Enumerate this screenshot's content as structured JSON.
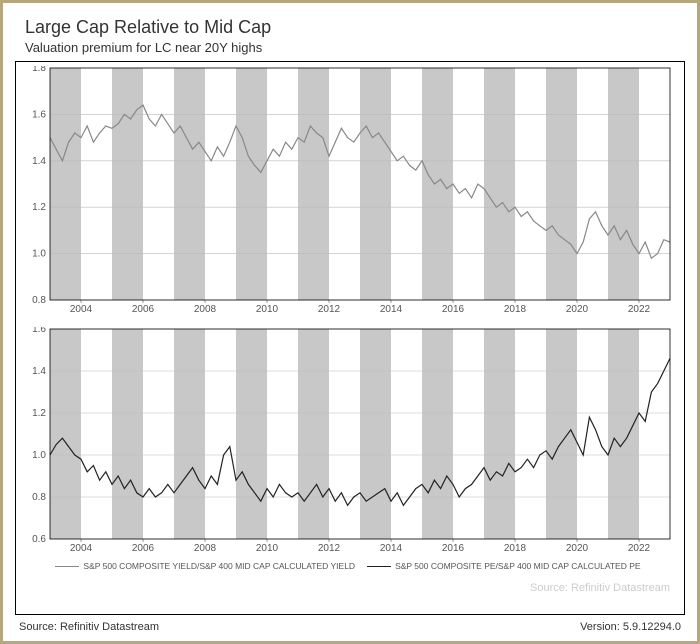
{
  "title": "Large Cap Relative to Mid Cap",
  "subtitle": "Valuation premium for LC near 20Y highs",
  "source_left": "Source: Refinitiv Datastream",
  "source_right": "Version: 5.9.12294.0",
  "watermark": "Source: Refinitiv Datastream",
  "x_axis": {
    "min": 2003,
    "max": 2023,
    "ticks": [
      2004,
      2006,
      2008,
      2010,
      2012,
      2014,
      2016,
      2018,
      2020,
      2022
    ]
  },
  "bands": [
    [
      2003,
      2004
    ],
    [
      2005,
      2006
    ],
    [
      2007,
      2008
    ],
    [
      2009,
      2010
    ],
    [
      2011,
      2012
    ],
    [
      2013,
      2014
    ],
    [
      2015,
      2016
    ],
    [
      2017,
      2018
    ],
    [
      2019,
      2020
    ],
    [
      2021,
      2022
    ]
  ],
  "panel_top": {
    "ylim": [
      0.8,
      1.8
    ],
    "yticks": [
      0.8,
      1.0,
      1.2,
      1.4,
      1.6,
      1.8
    ],
    "line_color": "#888888",
    "grid_color": "#bbbbbb",
    "band_color": "#c8c8c8",
    "series": [
      [
        2003.0,
        1.5
      ],
      [
        2003.2,
        1.45
      ],
      [
        2003.4,
        1.4
      ],
      [
        2003.6,
        1.48
      ],
      [
        2003.8,
        1.52
      ],
      [
        2004.0,
        1.5
      ],
      [
        2004.2,
        1.55
      ],
      [
        2004.4,
        1.48
      ],
      [
        2004.6,
        1.52
      ],
      [
        2004.8,
        1.55
      ],
      [
        2005.0,
        1.54
      ],
      [
        2005.2,
        1.56
      ],
      [
        2005.4,
        1.6
      ],
      [
        2005.6,
        1.58
      ],
      [
        2005.8,
        1.62
      ],
      [
        2006.0,
        1.64
      ],
      [
        2006.2,
        1.58
      ],
      [
        2006.4,
        1.55
      ],
      [
        2006.6,
        1.6
      ],
      [
        2006.8,
        1.56
      ],
      [
        2007.0,
        1.52
      ],
      [
        2007.2,
        1.55
      ],
      [
        2007.4,
        1.5
      ],
      [
        2007.6,
        1.45
      ],
      [
        2007.8,
        1.48
      ],
      [
        2008.0,
        1.44
      ],
      [
        2008.2,
        1.4
      ],
      [
        2008.4,
        1.46
      ],
      [
        2008.6,
        1.42
      ],
      [
        2008.8,
        1.48
      ],
      [
        2009.0,
        1.55
      ],
      [
        2009.2,
        1.5
      ],
      [
        2009.4,
        1.42
      ],
      [
        2009.6,
        1.38
      ],
      [
        2009.8,
        1.35
      ],
      [
        2010.0,
        1.4
      ],
      [
        2010.2,
        1.45
      ],
      [
        2010.4,
        1.42
      ],
      [
        2010.6,
        1.48
      ],
      [
        2010.8,
        1.45
      ],
      [
        2011.0,
        1.5
      ],
      [
        2011.2,
        1.48
      ],
      [
        2011.4,
        1.55
      ],
      [
        2011.6,
        1.52
      ],
      [
        2011.8,
        1.5
      ],
      [
        2012.0,
        1.42
      ],
      [
        2012.2,
        1.48
      ],
      [
        2012.4,
        1.54
      ],
      [
        2012.6,
        1.5
      ],
      [
        2012.8,
        1.48
      ],
      [
        2013.0,
        1.52
      ],
      [
        2013.2,
        1.55
      ],
      [
        2013.4,
        1.5
      ],
      [
        2013.6,
        1.52
      ],
      [
        2013.8,
        1.48
      ],
      [
        2014.0,
        1.44
      ],
      [
        2014.2,
        1.4
      ],
      [
        2014.4,
        1.42
      ],
      [
        2014.6,
        1.38
      ],
      [
        2014.8,
        1.36
      ],
      [
        2015.0,
        1.4
      ],
      [
        2015.2,
        1.34
      ],
      [
        2015.4,
        1.3
      ],
      [
        2015.6,
        1.32
      ],
      [
        2015.8,
        1.28
      ],
      [
        2016.0,
        1.3
      ],
      [
        2016.2,
        1.26
      ],
      [
        2016.4,
        1.28
      ],
      [
        2016.6,
        1.24
      ],
      [
        2016.8,
        1.3
      ],
      [
        2017.0,
        1.28
      ],
      [
        2017.2,
        1.24
      ],
      [
        2017.4,
        1.2
      ],
      [
        2017.6,
        1.22
      ],
      [
        2017.8,
        1.18
      ],
      [
        2018.0,
        1.2
      ],
      [
        2018.2,
        1.16
      ],
      [
        2018.4,
        1.18
      ],
      [
        2018.6,
        1.14
      ],
      [
        2018.8,
        1.12
      ],
      [
        2019.0,
        1.1
      ],
      [
        2019.2,
        1.12
      ],
      [
        2019.4,
        1.08
      ],
      [
        2019.6,
        1.06
      ],
      [
        2019.8,
        1.04
      ],
      [
        2020.0,
        1.0
      ],
      [
        2020.2,
        1.05
      ],
      [
        2020.4,
        1.15
      ],
      [
        2020.6,
        1.18
      ],
      [
        2020.8,
        1.12
      ],
      [
        2021.0,
        1.08
      ],
      [
        2021.2,
        1.12
      ],
      [
        2021.4,
        1.06
      ],
      [
        2021.6,
        1.1
      ],
      [
        2021.8,
        1.04
      ],
      [
        2022.0,
        1.0
      ],
      [
        2022.2,
        1.05
      ],
      [
        2022.4,
        0.98
      ],
      [
        2022.6,
        1.0
      ],
      [
        2022.8,
        1.06
      ],
      [
        2023.0,
        1.05
      ]
    ]
  },
  "panel_bot": {
    "ylim": [
      0.6,
      1.6
    ],
    "yticks": [
      0.6,
      0.8,
      1.0,
      1.2,
      1.4,
      1.6
    ],
    "line_color": "#222222",
    "grid_color": "#bbbbbb",
    "band_color": "#c8c8c8",
    "series": [
      [
        2003.0,
        1.0
      ],
      [
        2003.2,
        1.05
      ],
      [
        2003.4,
        1.08
      ],
      [
        2003.6,
        1.04
      ],
      [
        2003.8,
        1.0
      ],
      [
        2004.0,
        0.98
      ],
      [
        2004.2,
        0.92
      ],
      [
        2004.4,
        0.95
      ],
      [
        2004.6,
        0.88
      ],
      [
        2004.8,
        0.92
      ],
      [
        2005.0,
        0.86
      ],
      [
        2005.2,
        0.9
      ],
      [
        2005.4,
        0.84
      ],
      [
        2005.6,
        0.88
      ],
      [
        2005.8,
        0.82
      ],
      [
        2006.0,
        0.8
      ],
      [
        2006.2,
        0.84
      ],
      [
        2006.4,
        0.8
      ],
      [
        2006.6,
        0.82
      ],
      [
        2006.8,
        0.86
      ],
      [
        2007.0,
        0.82
      ],
      [
        2007.2,
        0.86
      ],
      [
        2007.4,
        0.9
      ],
      [
        2007.6,
        0.94
      ],
      [
        2007.8,
        0.88
      ],
      [
        2008.0,
        0.84
      ],
      [
        2008.2,
        0.9
      ],
      [
        2008.4,
        0.86
      ],
      [
        2008.6,
        1.0
      ],
      [
        2008.8,
        1.04
      ],
      [
        2009.0,
        0.88
      ],
      [
        2009.2,
        0.92
      ],
      [
        2009.4,
        0.86
      ],
      [
        2009.6,
        0.82
      ],
      [
        2009.8,
        0.78
      ],
      [
        2010.0,
        0.84
      ],
      [
        2010.2,
        0.8
      ],
      [
        2010.4,
        0.86
      ],
      [
        2010.6,
        0.82
      ],
      [
        2010.8,
        0.8
      ],
      [
        2011.0,
        0.82
      ],
      [
        2011.2,
        0.78
      ],
      [
        2011.4,
        0.82
      ],
      [
        2011.6,
        0.86
      ],
      [
        2011.8,
        0.8
      ],
      [
        2012.0,
        0.84
      ],
      [
        2012.2,
        0.78
      ],
      [
        2012.4,
        0.82
      ],
      [
        2012.6,
        0.76
      ],
      [
        2012.8,
        0.8
      ],
      [
        2013.0,
        0.82
      ],
      [
        2013.2,
        0.78
      ],
      [
        2013.4,
        0.8
      ],
      [
        2013.6,
        0.82
      ],
      [
        2013.8,
        0.84
      ],
      [
        2014.0,
        0.78
      ],
      [
        2014.2,
        0.82
      ],
      [
        2014.4,
        0.76
      ],
      [
        2014.6,
        0.8
      ],
      [
        2014.8,
        0.84
      ],
      [
        2015.0,
        0.86
      ],
      [
        2015.2,
        0.82
      ],
      [
        2015.4,
        0.88
      ],
      [
        2015.6,
        0.84
      ],
      [
        2015.8,
        0.9
      ],
      [
        2016.0,
        0.86
      ],
      [
        2016.2,
        0.8
      ],
      [
        2016.4,
        0.84
      ],
      [
        2016.6,
        0.86
      ],
      [
        2016.8,
        0.9
      ],
      [
        2017.0,
        0.94
      ],
      [
        2017.2,
        0.88
      ],
      [
        2017.4,
        0.92
      ],
      [
        2017.6,
        0.9
      ],
      [
        2017.8,
        0.96
      ],
      [
        2018.0,
        0.92
      ],
      [
        2018.2,
        0.94
      ],
      [
        2018.4,
        0.98
      ],
      [
        2018.6,
        0.94
      ],
      [
        2018.8,
        1.0
      ],
      [
        2019.0,
        1.02
      ],
      [
        2019.2,
        0.98
      ],
      [
        2019.4,
        1.04
      ],
      [
        2019.6,
        1.08
      ],
      [
        2019.8,
        1.12
      ],
      [
        2020.0,
        1.06
      ],
      [
        2020.2,
        1.0
      ],
      [
        2020.4,
        1.18
      ],
      [
        2020.6,
        1.12
      ],
      [
        2020.8,
        1.04
      ],
      [
        2021.0,
        1.0
      ],
      [
        2021.2,
        1.08
      ],
      [
        2021.4,
        1.04
      ],
      [
        2021.6,
        1.08
      ],
      [
        2021.8,
        1.14
      ],
      [
        2022.0,
        1.2
      ],
      [
        2022.2,
        1.16
      ],
      [
        2022.4,
        1.3
      ],
      [
        2022.6,
        1.34
      ],
      [
        2022.8,
        1.4
      ],
      [
        2023.0,
        1.46
      ]
    ]
  },
  "legend": {
    "item1": {
      "label": "S&P 500 COMPOSITE YIELD/S&P 400 MID CAP CALCULATED YIELD",
      "color": "#888888"
    },
    "item2": {
      "label": "S&P 500 COMPOSITE PE/S&P 400 MID CAP CALCULATED PE",
      "color": "#222222"
    }
  }
}
